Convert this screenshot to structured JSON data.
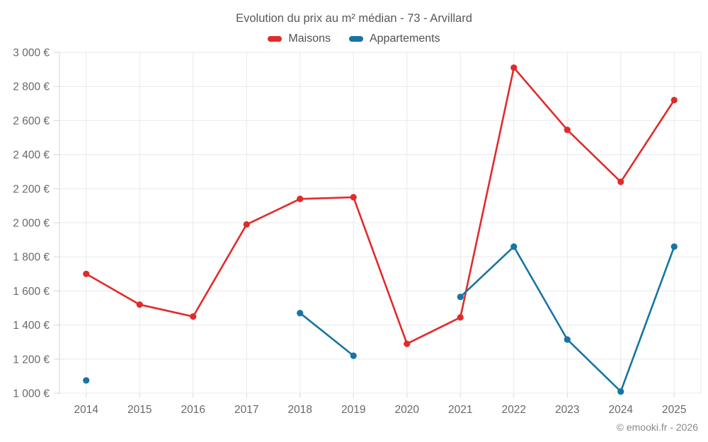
{
  "header": {
    "title": "Evolution du prix au m² médian - 73 - Arvillard"
  },
  "legend": [
    {
      "label": "Maisons",
      "color": "#e12b2b"
    },
    {
      "label": "Appartements",
      "color": "#1774a3"
    }
  ],
  "footer": {
    "copyright": "© emooki.fr - 2026"
  },
  "colors": {
    "maisons": "#e12b2b",
    "appartements": "#1774a3",
    "grid": "#e9e9e9",
    "axis": "#d6d6d6",
    "tick_text": "#68696b",
    "title_text": "#565a5e",
    "footer_text": "#85898d"
  },
  "chart_data": {
    "type": "line",
    "title": "Evolution du prix au m² médian - 73 - Arvillard",
    "xlabel": "",
    "ylabel": "",
    "x": [
      "2014",
      "2015",
      "2016",
      "2017",
      "2018",
      "2019",
      "2020",
      "2021",
      "2022",
      "2023",
      "2024",
      "2025"
    ],
    "series": [
      {
        "name": "Maisons",
        "color": "#e12b2b",
        "values": [
          1700,
          1520,
          1450,
          1990,
          2140,
          2150,
          1290,
          1445,
          2910,
          2545,
          2240,
          2720
        ]
      },
      {
        "name": "Appartements",
        "color": "#1774a3",
        "values": [
          1075,
          null,
          null,
          null,
          1470,
          1220,
          null,
          1565,
          1860,
          1315,
          1010,
          1860
        ]
      }
    ],
    "ylim": [
      1000,
      3000
    ],
    "y_ticks": [
      {
        "value": 1000,
        "label": "1 000 €"
      },
      {
        "value": 1200,
        "label": "1 200 €"
      },
      {
        "value": 1400,
        "label": "1 400 €"
      },
      {
        "value": 1600,
        "label": "1 600 €"
      },
      {
        "value": 1800,
        "label": "1 800 €"
      },
      {
        "value": 2000,
        "label": "2 000 €"
      },
      {
        "value": 2200,
        "label": "2 200 €"
      },
      {
        "value": 2400,
        "label": "2 400 €"
      },
      {
        "value": 2600,
        "label": "2 600 €"
      },
      {
        "value": 2800,
        "label": "2 800 €"
      },
      {
        "value": 3000,
        "label": "3 000 €"
      }
    ],
    "grid": true,
    "legend_position": "top",
    "marker": "circle"
  }
}
